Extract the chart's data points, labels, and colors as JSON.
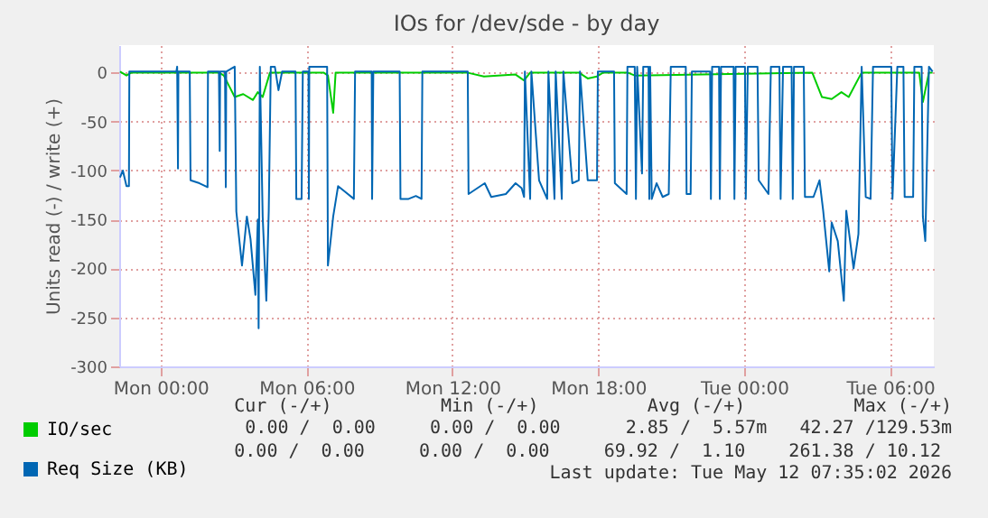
{
  "chart_data": {
    "type": "line",
    "title": "IOs for /dev/sde - by day",
    "ylabel": "Units read (-) / write (+)",
    "xlim": [
      "2026-05-10T22:18",
      "2026-05-12T07:48"
    ],
    "xticks": [
      {
        "value": "2026-05-11T00:00",
        "label": "Mon 00:00"
      },
      {
        "value": "2026-05-11T06:00",
        "label": "Mon 06:00"
      },
      {
        "value": "2026-05-11T12:00",
        "label": "Mon 12:00"
      },
      {
        "value": "2026-05-11T18:00",
        "label": "Mon 18:00"
      },
      {
        "value": "2026-05-12T00:00",
        "label": "Tue 00:00"
      },
      {
        "value": "2026-05-12T06:00",
        "label": "Tue 06:00"
      }
    ],
    "ylim": [
      -300,
      28
    ],
    "yticks": [
      -300,
      -250,
      -200,
      -150,
      -100,
      -50,
      0
    ],
    "grid": true,
    "legend": "bottom left",
    "series": [
      {
        "name": "IO/sec",
        "color": "#00cc00",
        "x": [
          "2026-05-10T22:20",
          "2026-05-10T22:36",
          "2026-05-10T22:48",
          "2026-05-11T02:24",
          "2026-05-11T02:36",
          "2026-05-11T03:03",
          "2026-05-11T03:24",
          "2026-05-11T03:48",
          "2026-05-11T04:00",
          "2026-05-11T04:12",
          "2026-05-11T04:30",
          "2026-05-11T06:42",
          "2026-05-11T06:53",
          "2026-05-11T07:06",
          "2026-05-11T07:12",
          "2026-05-11T12:36",
          "2026-05-11T13:18",
          "2026-05-11T14:36",
          "2026-05-11T14:57",
          "2026-05-11T15:12",
          "2026-05-11T17:12",
          "2026-05-11T17:34",
          "2026-05-11T17:57",
          "2026-05-11T18:12",
          "2026-05-11T19:12",
          "2026-05-11T19:30",
          "2026-05-12T02:48",
          "2026-05-12T03:12",
          "2026-05-12T03:36",
          "2026-05-12T04:00",
          "2026-05-12T04:18",
          "2026-05-12T04:50",
          "2026-05-12T07:12",
          "2026-05-12T07:21",
          "2026-05-12T07:36",
          "2026-05-12T07:45"
        ],
        "values": [
          1,
          -3,
          0,
          0,
          -3,
          -25,
          -22,
          -28,
          -20,
          -25,
          0,
          0,
          -3,
          -41,
          0,
          0,
          -4,
          -2,
          -8,
          0,
          0,
          -6,
          -4,
          0,
          0,
          -3,
          0,
          -25,
          -27,
          -20,
          -25,
          0,
          0,
          -30,
          0,
          0
        ]
      },
      {
        "name": "Req Size (KB)",
        "color": "#0066b3",
        "x": [
          "2026-05-10T22:20",
          "2026-05-10T22:27",
          "2026-05-10T22:36",
          "2026-05-10T22:42",
          "2026-05-10T22:43",
          "2026-05-11T00:39",
          "2026-05-11T00:41",
          "2026-05-11T00:43",
          "2026-05-11T00:44",
          "2026-05-11T01:12",
          "2026-05-11T01:14",
          "2026-05-11T01:36",
          "2026-05-11T01:56",
          "2026-05-11T01:57",
          "2026-05-11T02:24",
          "2026-05-11T02:26",
          "2026-05-11T02:27",
          "2026-05-11T02:39",
          "2026-05-11T02:41",
          "2026-05-11T02:42",
          "2026-05-11T03:03",
          "2026-05-11T03:07",
          "2026-05-11T03:21",
          "2026-05-11T03:33",
          "2026-05-11T03:42",
          "2026-05-11T03:54",
          "2026-05-11T04:00",
          "2026-05-11T04:02",
          "2026-05-11T04:05",
          "2026-05-11T04:12",
          "2026-05-11T04:21",
          "2026-05-11T04:27",
          "2026-05-11T04:32",
          "2026-05-11T04:42",
          "2026-05-11T04:51",
          "2026-05-11T05:00",
          "2026-05-11T05:33",
          "2026-05-11T05:35",
          "2026-05-11T05:48",
          "2026-05-11T05:51",
          "2026-05-11T06:05",
          "2026-05-11T06:06",
          "2026-05-11T06:07",
          "2026-05-11T06:51",
          "2026-05-11T06:53",
          "2026-05-11T07:06",
          "2026-05-11T07:18",
          "2026-05-11T07:36",
          "2026-05-11T07:57",
          "2026-05-11T08:00",
          "2026-05-11T08:41",
          "2026-05-11T08:42",
          "2026-05-11T08:45",
          "2026-05-11T09:50",
          "2026-05-11T09:52",
          "2026-05-11T10:12",
          "2026-05-11T10:30",
          "2026-05-11T10:44",
          "2026-05-11T10:46",
          "2026-05-11T12:38",
          "2026-05-11T12:40",
          "2026-05-11T13:20",
          "2026-05-11T13:36",
          "2026-05-11T14:12",
          "2026-05-11T14:36",
          "2026-05-11T14:51",
          "2026-05-11T14:57",
          "2026-05-11T14:59",
          "2026-05-11T15:12",
          "2026-05-11T15:15",
          "2026-05-11T15:34",
          "2026-05-11T15:54",
          "2026-05-11T15:57",
          "2026-05-11T16:12",
          "2026-05-11T16:15",
          "2026-05-11T16:30",
          "2026-05-11T16:34",
          "2026-05-11T16:56",
          "2026-05-11T17:12",
          "2026-05-11T17:15",
          "2026-05-11T17:34",
          "2026-05-11T17:57",
          "2026-05-11T17:59",
          "2026-05-11T18:39",
          "2026-05-11T18:41",
          "2026-05-11T19:10",
          "2026-05-11T19:12",
          "2026-05-11T19:30",
          "2026-05-11T19:33",
          "2026-05-11T19:36",
          "2026-05-11T19:48",
          "2026-05-11T19:51",
          "2026-05-11T20:04",
          "2026-05-11T20:06",
          "2026-05-11T20:08",
          "2026-05-11T20:12",
          "2026-05-11T20:24",
          "2026-05-11T20:39",
          "2026-05-11T20:54",
          "2026-05-11T20:59",
          "2026-05-11T21:36",
          "2026-05-11T21:38",
          "2026-05-11T21:48",
          "2026-05-11T21:51",
          "2026-05-11T22:36",
          "2026-05-11T22:38",
          "2026-05-11T22:41",
          "2026-05-11T22:58",
          "2026-05-11T23:00",
          "2026-05-11T23:03",
          "2026-05-11T23:34",
          "2026-05-11T23:36",
          "2026-05-11T23:39",
          "2026-05-12T00:02",
          "2026-05-12T00:04",
          "2026-05-12T00:09",
          "2026-05-12T00:33",
          "2026-05-12T00:36",
          "2026-05-12T01:00",
          "2026-05-12T01:06",
          "2026-05-12T01:27",
          "2026-05-12T01:30",
          "2026-05-12T01:36",
          "2026-05-12T01:57",
          "2026-05-12T02:00",
          "2026-05-12T02:03",
          "2026-05-12T02:27",
          "2026-05-12T02:30",
          "2026-05-12T02:51",
          "2026-05-12T03:06",
          "2026-05-12T03:15",
          "2026-05-12T03:30",
          "2026-05-12T03:36",
          "2026-05-12T03:51",
          "2026-05-12T04:06",
          "2026-05-12T04:12",
          "2026-05-12T04:30",
          "2026-05-12T04:42",
          "2026-05-12T04:50",
          "2026-05-12T05:00",
          "2026-05-12T05:12",
          "2026-05-12T05:18",
          "2026-05-12T05:30",
          "2026-05-12T06:03",
          "2026-05-12T06:06",
          "2026-05-12T06:18",
          "2026-05-12T06:33",
          "2026-05-12T06:36",
          "2026-05-12T06:57",
          "2026-05-12T07:00",
          "2026-05-12T07:18",
          "2026-05-12T07:21",
          "2026-05-12T07:27",
          "2026-05-12T07:36",
          "2026-05-12T07:45"
        ],
        "values": [
          -107,
          -100,
          -116,
          -116,
          1,
          1,
          6,
          -98,
          1,
          1,
          -110,
          -113,
          -117,
          1,
          1,
          -80,
          1,
          1,
          -117,
          1,
          6,
          -142,
          -197,
          -147,
          -170,
          -227,
          -150,
          -261,
          6,
          -147,
          -233,
          -141,
          6,
          6,
          -18,
          1,
          1,
          -129,
          -129,
          1,
          1,
          -129,
          6,
          6,
          -197,
          -147,
          -116,
          -122,
          -129,
          1,
          1,
          -129,
          1,
          1,
          -129,
          -129,
          -126,
          -129,
          1,
          1,
          -124,
          -113,
          -127,
          -124,
          -113,
          -118,
          -127,
          1,
          -129,
          1,
          -110,
          -129,
          1,
          -129,
          1,
          -129,
          1,
          -113,
          -110,
          1,
          -110,
          -110,
          1,
          1,
          -113,
          -124,
          6,
          6,
          -129,
          6,
          -103,
          6,
          6,
          -129,
          6,
          -129,
          -113,
          -127,
          -124,
          6,
          6,
          -124,
          -124,
          1,
          1,
          -129,
          6,
          6,
          -129,
          6,
          6,
          -129,
          6,
          6,
          -129,
          6,
          6,
          -110,
          -124,
          6,
          6,
          -129,
          6,
          6,
          -129,
          6,
          6,
          -127,
          -127,
          -110,
          -141,
          -203,
          -153,
          -172,
          -233,
          -141,
          -200,
          -165,
          6,
          -127,
          -129,
          6,
          6,
          6,
          -129,
          6,
          6,
          -127,
          -127,
          6,
          6,
          -147,
          -172,
          6,
          1
        ]
      }
    ],
    "annotations": [
      "Cur (-/+)          Min (-/+)          Avg (-/+)          Max (-/+)",
      "0.00 /  0.00     0.00 /  0.00      2.85 /  5.57m   42.27 /129.53m",
      "0.00 /  0.00     0.00 /  0.00     69.92 /  1.10    261.38 / 10.12 ",
      "Last update: Tue May 12 07:35:02 2026"
    ]
  }
}
